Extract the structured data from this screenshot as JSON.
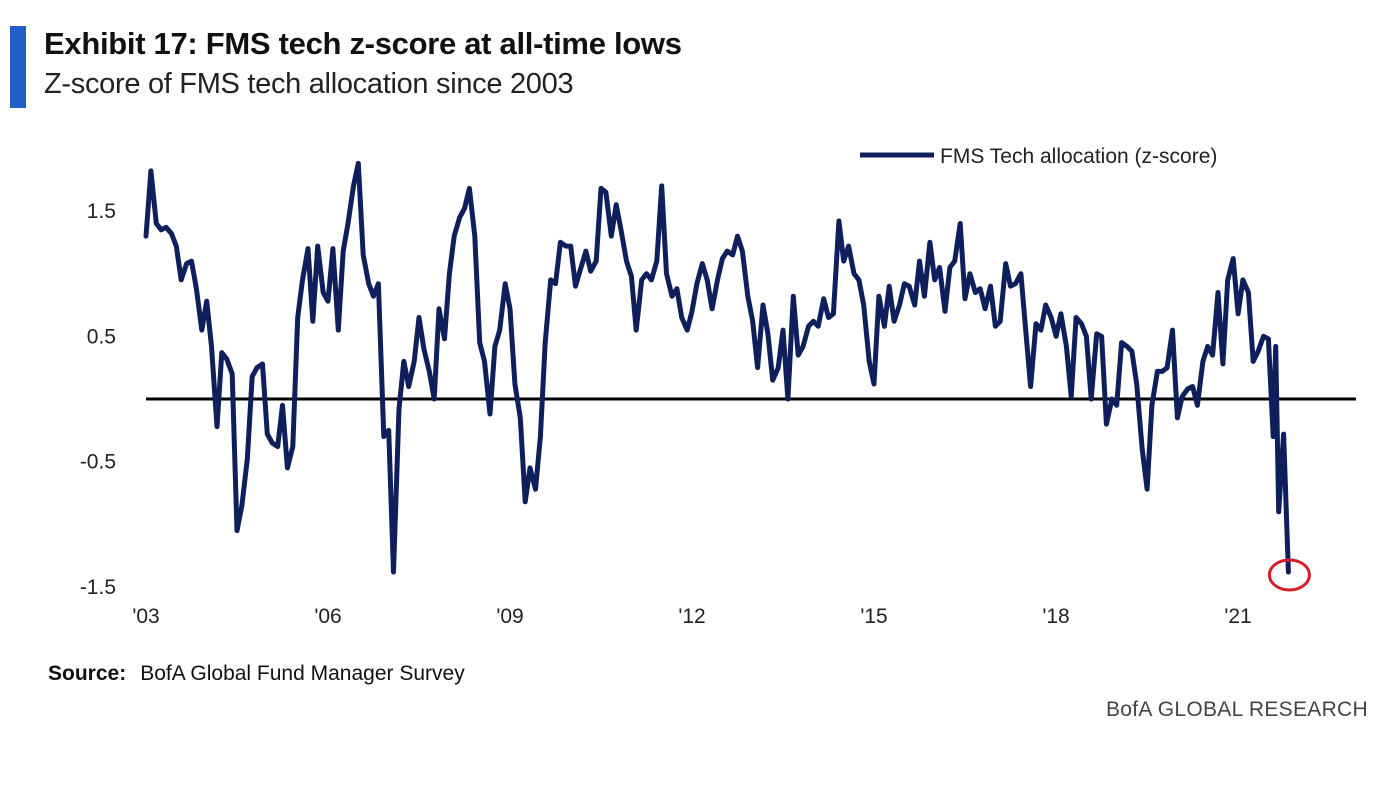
{
  "header": {
    "title": "Exhibit 17: FMS tech z-score at all-time lows",
    "subtitle": "Z-score of FMS tech allocation since 2003"
  },
  "footer": {
    "source_label": "Source:",
    "source_text": "BofA Global Fund Manager Survey",
    "brand": "BofA GLOBAL RESEARCH"
  },
  "colors": {
    "accent": "#1f5fc6",
    "series": "#0f1f5c",
    "zero_line": "#000000",
    "highlight_circle": "#d61f2a"
  },
  "chart_data": {
    "type": "line",
    "title": "",
    "xlabel": "",
    "ylabel": "",
    "ylim": [
      -1.5,
      2.0
    ],
    "xlim": [
      2003.0,
      2023.5
    ],
    "yticks": [
      1.5,
      0.5,
      -0.5,
      -1.5
    ],
    "ytick_labels": [
      "1.5",
      "0.5",
      "-0.5",
      "-1.5"
    ],
    "xticks": [
      2003,
      2006,
      2009,
      2012,
      2015,
      2018,
      2021
    ],
    "xtick_labels": [
      "'03",
      "'06",
      "'09",
      "'12",
      "'15",
      "'18",
      "'21"
    ],
    "reference_line": 0,
    "legend_position": "top-right",
    "annotation": "red circle around latest value",
    "series": [
      {
        "name": "FMS Tech allocation (z-score)",
        "points": [
          [
            2003.0,
            1.3
          ],
          [
            2003.08,
            1.82
          ],
          [
            2003.17,
            1.4
          ],
          [
            2003.25,
            1.35
          ],
          [
            2003.33,
            1.37
          ],
          [
            2003.42,
            1.32
          ],
          [
            2003.5,
            1.22
          ],
          [
            2003.58,
            0.95
          ],
          [
            2003.67,
            1.08
          ],
          [
            2003.75,
            1.1
          ],
          [
            2003.83,
            0.88
          ],
          [
            2003.92,
            0.55
          ],
          [
            2004.0,
            0.78
          ],
          [
            2004.08,
            0.42
          ],
          [
            2004.17,
            -0.22
          ],
          [
            2004.25,
            0.37
          ],
          [
            2004.33,
            0.32
          ],
          [
            2004.42,
            0.2
          ],
          [
            2004.5,
            -1.05
          ],
          [
            2004.58,
            -0.85
          ],
          [
            2004.67,
            -0.48
          ],
          [
            2004.75,
            0.18
          ],
          [
            2004.83,
            0.25
          ],
          [
            2004.92,
            0.28
          ],
          [
            2005.0,
            -0.28
          ],
          [
            2005.08,
            -0.35
          ],
          [
            2005.17,
            -0.38
          ],
          [
            2005.25,
            -0.05
          ],
          [
            2005.33,
            -0.55
          ],
          [
            2005.42,
            -0.38
          ],
          [
            2005.5,
            0.65
          ],
          [
            2005.58,
            0.95
          ],
          [
            2005.67,
            1.2
          ],
          [
            2005.75,
            0.62
          ],
          [
            2005.83,
            1.22
          ],
          [
            2005.92,
            0.85
          ],
          [
            2006.0,
            0.78
          ],
          [
            2006.08,
            1.2
          ],
          [
            2006.17,
            0.55
          ],
          [
            2006.25,
            1.18
          ],
          [
            2006.33,
            1.4
          ],
          [
            2006.42,
            1.7
          ],
          [
            2006.5,
            1.88
          ],
          [
            2006.58,
            1.15
          ],
          [
            2006.67,
            0.92
          ],
          [
            2006.75,
            0.82
          ],
          [
            2006.83,
            0.92
          ],
          [
            2006.92,
            -0.3
          ],
          [
            2007.0,
            -0.25
          ],
          [
            2007.08,
            -1.38
          ],
          [
            2007.17,
            -0.08
          ],
          [
            2007.25,
            0.3
          ],
          [
            2007.33,
            0.1
          ],
          [
            2007.42,
            0.3
          ],
          [
            2007.5,
            0.65
          ],
          [
            2007.58,
            0.4
          ],
          [
            2007.67,
            0.22
          ],
          [
            2007.75,
            0.0
          ],
          [
            2007.83,
            0.72
          ],
          [
            2007.92,
            0.48
          ],
          [
            2008.0,
            1.0
          ],
          [
            2008.08,
            1.3
          ],
          [
            2008.17,
            1.45
          ],
          [
            2008.25,
            1.52
          ],
          [
            2008.33,
            1.68
          ],
          [
            2008.42,
            1.3
          ],
          [
            2008.5,
            0.45
          ],
          [
            2008.58,
            0.3
          ],
          [
            2008.67,
            -0.12
          ],
          [
            2008.75,
            0.42
          ],
          [
            2008.83,
            0.55
          ],
          [
            2008.92,
            0.92
          ],
          [
            2009.0,
            0.72
          ],
          [
            2009.08,
            0.12
          ],
          [
            2009.17,
            -0.15
          ],
          [
            2009.25,
            -0.82
          ],
          [
            2009.33,
            -0.55
          ],
          [
            2009.42,
            -0.72
          ],
          [
            2009.5,
            -0.3
          ],
          [
            2009.58,
            0.45
          ],
          [
            2009.67,
            0.95
          ],
          [
            2009.75,
            0.92
          ],
          [
            2009.83,
            1.25
          ],
          [
            2009.92,
            1.22
          ],
          [
            2010.0,
            1.22
          ],
          [
            2010.08,
            0.9
          ],
          [
            2010.17,
            1.05
          ],
          [
            2010.25,
            1.18
          ],
          [
            2010.33,
            1.02
          ],
          [
            2010.42,
            1.1
          ],
          [
            2010.5,
            1.68
          ],
          [
            2010.58,
            1.65
          ],
          [
            2010.67,
            1.3
          ],
          [
            2010.75,
            1.55
          ],
          [
            2010.83,
            1.35
          ],
          [
            2010.92,
            1.1
          ],
          [
            2011.0,
            0.98
          ],
          [
            2011.08,
            0.55
          ],
          [
            2011.17,
            0.95
          ],
          [
            2011.25,
            1.0
          ],
          [
            2011.33,
            0.95
          ],
          [
            2011.42,
            1.1
          ],
          [
            2011.5,
            1.7
          ],
          [
            2011.58,
            1.0
          ],
          [
            2011.67,
            0.82
          ],
          [
            2011.75,
            0.88
          ],
          [
            2011.83,
            0.65
          ],
          [
            2011.92,
            0.55
          ],
          [
            2012.0,
            0.7
          ],
          [
            2012.08,
            0.92
          ],
          [
            2012.17,
            1.08
          ],
          [
            2012.25,
            0.95
          ],
          [
            2012.33,
            0.72
          ],
          [
            2012.42,
            0.95
          ],
          [
            2012.5,
            1.12
          ],
          [
            2012.58,
            1.18
          ],
          [
            2012.67,
            1.15
          ],
          [
            2012.75,
            1.3
          ],
          [
            2012.83,
            1.18
          ],
          [
            2012.92,
            0.82
          ],
          [
            2013.0,
            0.62
          ],
          [
            2013.08,
            0.25
          ],
          [
            2013.17,
            0.75
          ],
          [
            2013.25,
            0.52
          ],
          [
            2013.33,
            0.15
          ],
          [
            2013.42,
            0.25
          ],
          [
            2013.5,
            0.55
          ],
          [
            2013.58,
            0.0
          ],
          [
            2013.67,
            0.82
          ],
          [
            2013.75,
            0.35
          ],
          [
            2013.83,
            0.42
          ],
          [
            2013.92,
            0.58
          ],
          [
            2014.0,
            0.62
          ],
          [
            2014.08,
            0.58
          ],
          [
            2014.17,
            0.8
          ],
          [
            2014.25,
            0.65
          ],
          [
            2014.33,
            0.68
          ],
          [
            2014.42,
            1.42
          ],
          [
            2014.5,
            1.1
          ],
          [
            2014.58,
            1.22
          ],
          [
            2014.67,
            1.0
          ],
          [
            2014.75,
            0.95
          ],
          [
            2014.83,
            0.75
          ],
          [
            2014.92,
            0.3
          ],
          [
            2015.0,
            0.12
          ],
          [
            2015.08,
            0.82
          ],
          [
            2015.17,
            0.58
          ],
          [
            2015.25,
            0.9
          ],
          [
            2015.33,
            0.62
          ],
          [
            2015.42,
            0.75
          ],
          [
            2015.5,
            0.92
          ],
          [
            2015.58,
            0.9
          ],
          [
            2015.67,
            0.75
          ],
          [
            2015.75,
            1.1
          ],
          [
            2015.83,
            0.82
          ],
          [
            2015.92,
            1.25
          ],
          [
            2016.0,
            0.95
          ],
          [
            2016.08,
            1.05
          ],
          [
            2016.17,
            0.7
          ],
          [
            2016.25,
            1.05
          ],
          [
            2016.33,
            1.1
          ],
          [
            2016.42,
            1.4
          ],
          [
            2016.5,
            0.8
          ],
          [
            2016.58,
            1.0
          ],
          [
            2016.67,
            0.85
          ],
          [
            2016.75,
            0.88
          ],
          [
            2016.83,
            0.72
          ],
          [
            2016.92,
            0.9
          ],
          [
            2017.0,
            0.58
          ],
          [
            2017.08,
            0.62
          ],
          [
            2017.17,
            1.08
          ],
          [
            2017.25,
            0.9
          ],
          [
            2017.33,
            0.92
          ],
          [
            2017.42,
            1.0
          ],
          [
            2017.5,
            0.55
          ],
          [
            2017.58,
            0.1
          ],
          [
            2017.67,
            0.6
          ],
          [
            2017.75,
            0.55
          ],
          [
            2017.83,
            0.75
          ],
          [
            2017.92,
            0.65
          ],
          [
            2018.0,
            0.5
          ],
          [
            2018.08,
            0.68
          ],
          [
            2018.17,
            0.42
          ],
          [
            2018.25,
            0.02
          ],
          [
            2018.33,
            0.65
          ],
          [
            2018.42,
            0.6
          ],
          [
            2018.5,
            0.5
          ],
          [
            2018.58,
            0.0
          ],
          [
            2018.67,
            0.52
          ],
          [
            2018.75,
            0.5
          ],
          [
            2018.83,
            -0.2
          ],
          [
            2018.92,
            0.0
          ],
          [
            2019.0,
            -0.05
          ],
          [
            2019.08,
            0.45
          ],
          [
            2019.17,
            0.42
          ],
          [
            2019.25,
            0.38
          ],
          [
            2019.33,
            0.12
          ],
          [
            2019.42,
            -0.4
          ],
          [
            2019.5,
            -0.72
          ],
          [
            2019.58,
            -0.05
          ],
          [
            2019.67,
            0.22
          ],
          [
            2019.75,
            0.22
          ],
          [
            2019.83,
            0.25
          ],
          [
            2019.92,
            0.55
          ],
          [
            2020.0,
            -0.15
          ],
          [
            2020.08,
            0.02
          ],
          [
            2020.17,
            0.08
          ],
          [
            2020.25,
            0.1
          ],
          [
            2020.33,
            -0.05
          ],
          [
            2020.42,
            0.3
          ],
          [
            2020.5,
            0.42
          ],
          [
            2020.58,
            0.35
          ],
          [
            2020.67,
            0.85
          ],
          [
            2020.75,
            0.28
          ],
          [
            2020.83,
            0.95
          ],
          [
            2020.92,
            1.12
          ],
          [
            2021.0,
            0.68
          ],
          [
            2021.08,
            0.95
          ],
          [
            2021.17,
            0.85
          ],
          [
            2021.25,
            0.3
          ],
          [
            2021.33,
            0.38
          ],
          [
            2021.42,
            0.5
          ],
          [
            2021.5,
            0.48
          ],
          [
            2021.58,
            -0.3
          ],
          [
            2021.62,
            0.42
          ],
          [
            2021.67,
            -0.9
          ],
          [
            2021.75,
            -0.28
          ],
          [
            2021.83,
            -1.38
          ]
        ]
      }
    ]
  }
}
